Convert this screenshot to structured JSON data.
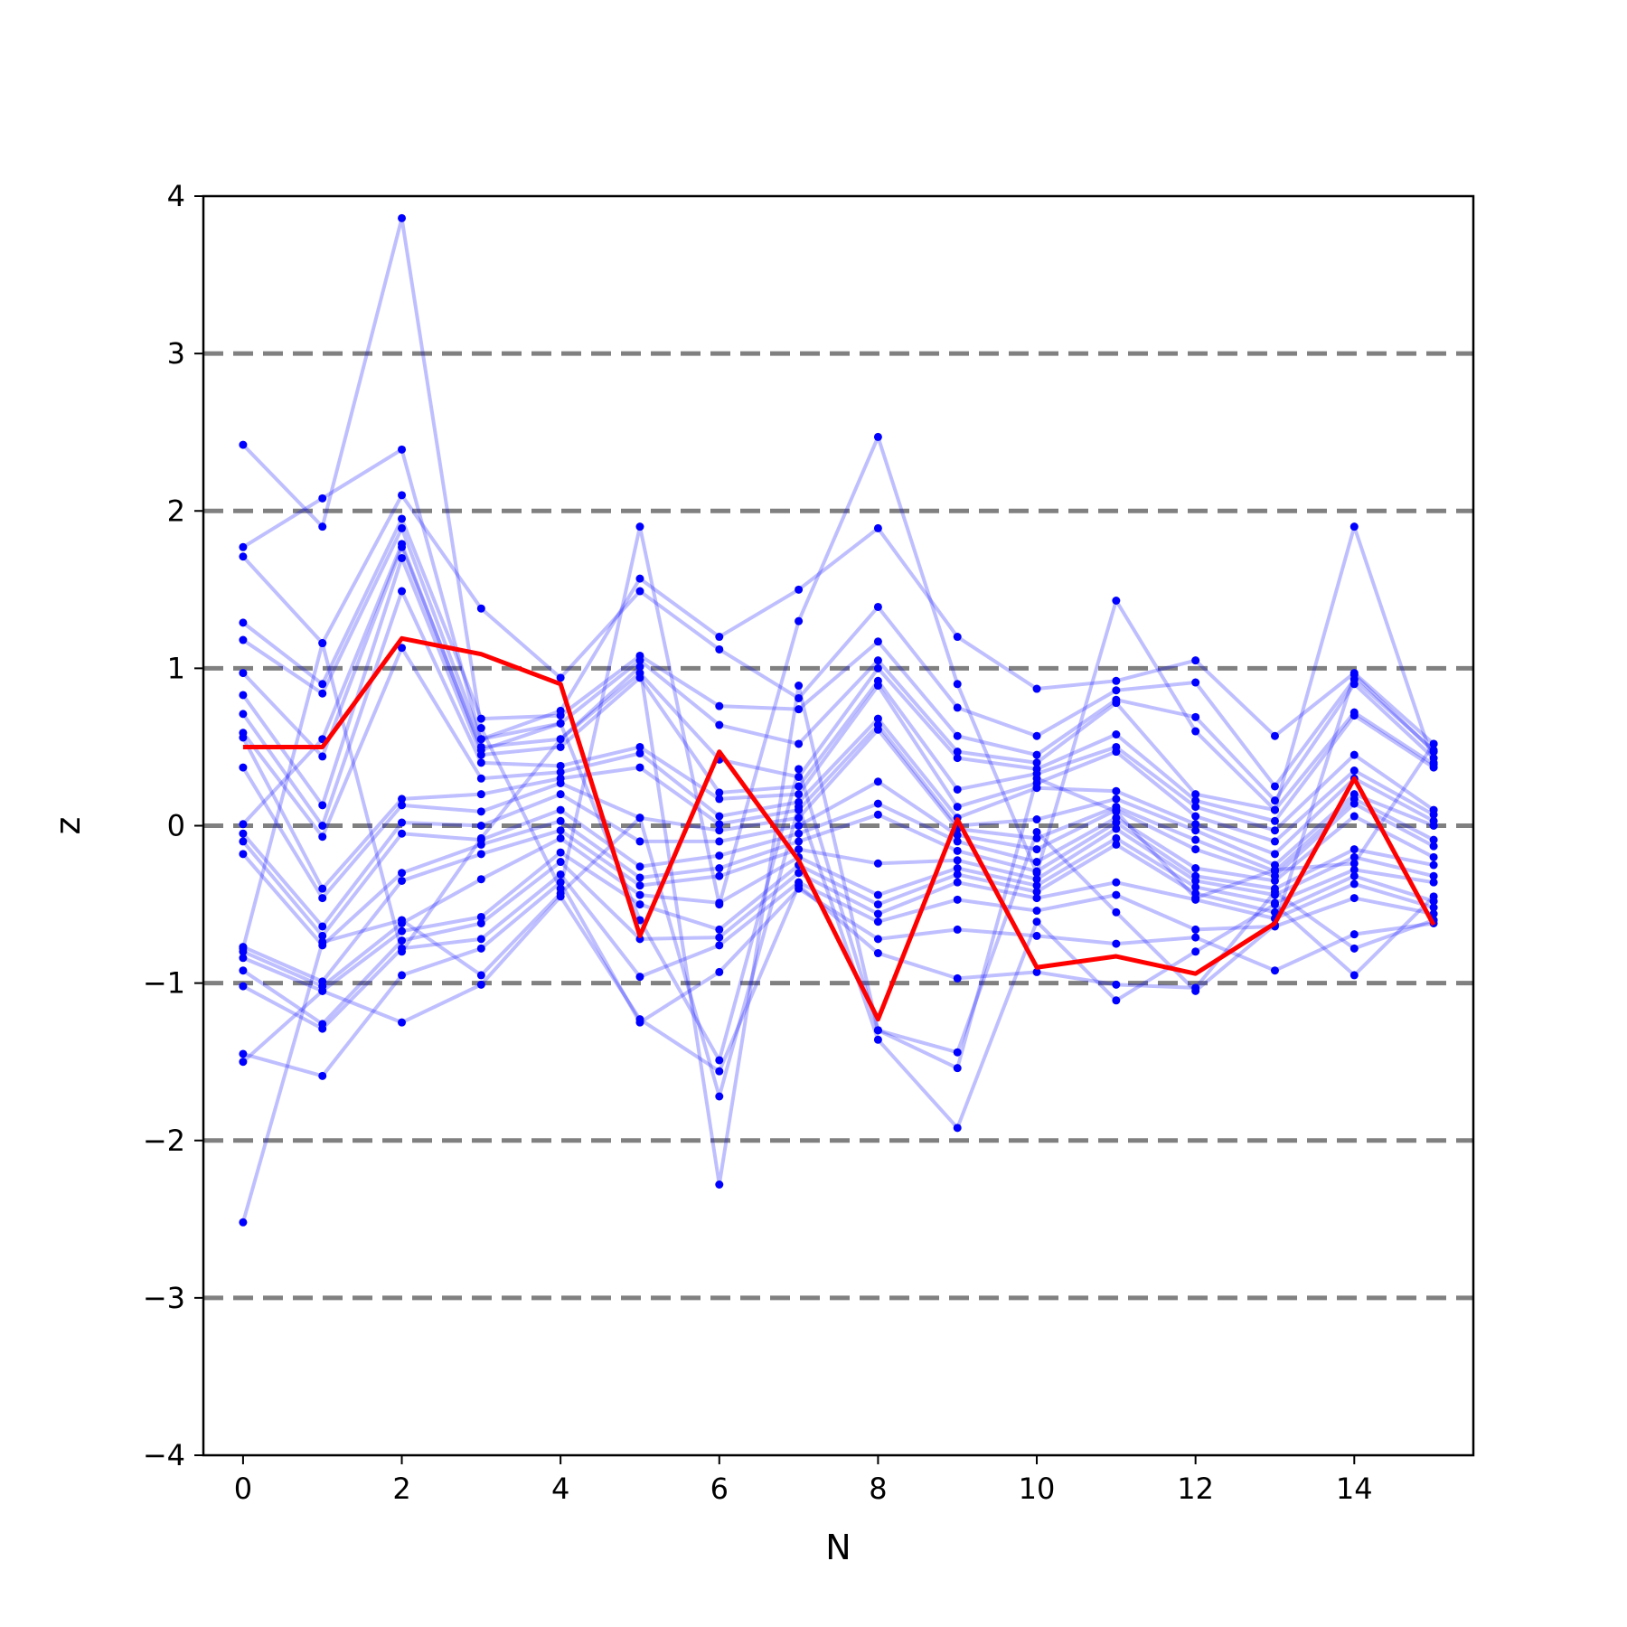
{
  "chart_data": {
    "type": "line",
    "xlabel": "N",
    "ylabel": "z",
    "xlim": [
      -0.5,
      15.5
    ],
    "ylim": [
      -4,
      4
    ],
    "x_ticks": [
      0,
      2,
      4,
      6,
      8,
      10,
      12,
      14
    ],
    "x_tick_labels": [
      "0",
      "2",
      "4",
      "6",
      "8",
      "10",
      "12",
      "14"
    ],
    "y_ticks": [
      -4,
      -3,
      -2,
      -1,
      0,
      1,
      2,
      3,
      4
    ],
    "y_tick_labels": [
      "−4",
      "−3",
      "−2",
      "−1",
      "0",
      "1",
      "2",
      "3",
      "4"
    ],
    "reference_lines": [
      -3,
      -2,
      -1,
      0,
      1,
      2,
      3
    ],
    "colors": {
      "highlight": "#ff0000",
      "samples": "#0000ff",
      "reference": "#808080"
    },
    "x": [
      0,
      1,
      2,
      3,
      4,
      5,
      6,
      7,
      8,
      9,
      10,
      11,
      12,
      13,
      14,
      15
    ],
    "highlight_series": {
      "values": [
        0.5,
        0.5,
        1.19,
        1.09,
        0.9,
        -0.7,
        0.47,
        -0.22,
        -1.23,
        0.04,
        -0.9,
        -0.83,
        -0.94,
        -0.62,
        0.3,
        -0.63
      ]
    },
    "sample_series": [
      {
        "values": [
          2.42,
          1.9,
          3.86,
          0.62,
          -0.4,
          1.9,
          -0.5,
          1.3,
          2.47,
          0.9,
          -0.3,
          1.43,
          0.6,
          0.1,
          1.9,
          0.4
        ]
      },
      {
        "values": [
          1.77,
          2.08,
          2.39,
          0.55,
          0.73,
          1.57,
          1.2,
          1.5,
          1.89,
          1.2,
          0.87,
          0.92,
          1.05,
          0.57,
          0.97,
          0.52
        ]
      },
      {
        "values": [
          1.71,
          1.16,
          2.1,
          1.38,
          0.94,
          1.49,
          1.12,
          0.81,
          1.39,
          0.75,
          0.57,
          0.86,
          0.91,
          0.25,
          0.93,
          0.48
        ]
      },
      {
        "values": [
          1.29,
          0.9,
          1.95,
          0.68,
          0.7,
          1.08,
          0.76,
          0.74,
          1.17,
          0.57,
          0.45,
          0.8,
          0.69,
          0.16,
          0.9,
          0.43
        ]
      },
      {
        "values": [
          1.18,
          0.84,
          1.89,
          0.55,
          0.65,
          1.05,
          0.64,
          0.52,
          1.05,
          0.47,
          0.4,
          0.78,
          0.2,
          0.1,
          0.72,
          0.39
        ]
      },
      {
        "values": [
          0.97,
          0.44,
          1.77,
          0.5,
          0.55,
          0.97,
          0.42,
          0.31,
          1.0,
          0.43,
          0.36,
          0.58,
          0.16,
          0.03,
          0.7,
          0.37
        ]
      },
      {
        "values": [
          0.83,
          0.13,
          1.7,
          0.45,
          0.5,
          0.94,
          0.21,
          0.25,
          0.92,
          0.23,
          0.33,
          0.5,
          0.12,
          -0.03,
          0.45,
          0.1
        ]
      },
      {
        "values": [
          0.71,
          0.0,
          1.49,
          0.4,
          0.38,
          0.5,
          0.17,
          0.2,
          0.89,
          0.12,
          0.27,
          0.47,
          0.06,
          -0.1,
          0.35,
          0.07
        ]
      },
      {
        "values": [
          0.59,
          -0.07,
          1.13,
          0.3,
          0.34,
          0.46,
          0.06,
          0.15,
          0.68,
          0.05,
          0.24,
          0.22,
          0.01,
          -0.18,
          0.3,
          0.03
        ]
      },
      {
        "values": [
          0.56,
          -0.4,
          0.17,
          0.2,
          0.3,
          0.37,
          0.01,
          0.1,
          0.64,
          0.0,
          0.04,
          0.17,
          -0.03,
          -0.25,
          0.2,
          0.0
        ]
      },
      {
        "values": [
          0.37,
          -0.46,
          0.13,
          0.09,
          0.27,
          0.05,
          -0.03,
          0.05,
          0.61,
          -0.02,
          -0.08,
          0.12,
          -0.09,
          -0.29,
          0.17,
          -0.09
        ]
      },
      {
        "values": [
          -0.05,
          -0.64,
          0.02,
          0.0,
          0.2,
          -0.1,
          -0.1,
          0.0,
          0.28,
          -0.06,
          -0.15,
          0.1,
          -0.15,
          -0.32,
          0.14,
          -0.13
        ]
      },
      {
        "values": [
          -0.1,
          -0.7,
          -0.05,
          -0.09,
          0.1,
          -0.26,
          -0.19,
          -0.05,
          0.14,
          -0.1,
          -0.23,
          0.05,
          -0.27,
          -0.35,
          0.06,
          -0.2
        ]
      },
      {
        "values": [
          -0.18,
          -0.76,
          -0.3,
          -0.12,
          0.03,
          -0.33,
          -0.27,
          -0.1,
          0.07,
          -0.16,
          -0.29,
          0.02,
          -0.32,
          -0.4,
          -0.15,
          -0.25
        ]
      },
      {
        "values": [
          -0.77,
          -0.99,
          -0.35,
          -0.18,
          -0.03,
          -0.38,
          -0.32,
          -0.15,
          -0.24,
          -0.22,
          -0.34,
          -0.02,
          -0.35,
          -0.44,
          -0.2,
          -0.32
        ]
      },
      {
        "values": [
          -0.8,
          -1.02,
          -0.62,
          -0.34,
          -0.08,
          -0.44,
          -0.49,
          -0.2,
          -0.44,
          -0.27,
          -0.38,
          -0.08,
          -0.39,
          -0.49,
          -0.28,
          -0.36
        ]
      },
      {
        "values": [
          -0.84,
          -1.05,
          -0.67,
          -0.58,
          -0.17,
          -0.5,
          -0.66,
          -0.25,
          -0.5,
          -0.31,
          -0.42,
          -0.12,
          -0.43,
          -0.55,
          -0.32,
          -0.48
        ]
      },
      {
        "values": [
          -0.92,
          -1.26,
          -0.73,
          -0.62,
          -0.23,
          -0.72,
          -0.71,
          -0.3,
          -0.56,
          -0.36,
          -0.46,
          -0.36,
          -0.47,
          -0.59,
          -0.37,
          -0.52
        ]
      },
      {
        "values": [
          -1.02,
          -1.29,
          -0.78,
          -0.72,
          -0.31,
          -0.96,
          -0.76,
          -0.36,
          -0.61,
          -0.47,
          -0.54,
          -0.44,
          -0.66,
          -0.64,
          -0.46,
          -0.56
        ]
      },
      {
        "values": [
          -1.45,
          -1.59,
          -0.95,
          -0.78,
          -0.36,
          -1.25,
          -0.93,
          -0.4,
          -0.72,
          -0.66,
          -0.7,
          -0.75,
          -0.71,
          -0.92,
          -0.69,
          -0.62
        ]
      },
      {
        "values": [
          -1.5,
          -1.05,
          -1.25,
          -1.01,
          -0.45,
          -1.23,
          -1.56,
          -0.38,
          -0.81,
          -0.97,
          -0.93,
          -1.01,
          -1.03,
          -0.42,
          -0.78,
          -0.6
        ]
      },
      {
        "values": [
          -2.52,
          -0.74,
          -0.6,
          -0.95,
          -0.43,
          0.05,
          -1.72,
          0.12,
          -1.36,
          -1.92,
          -0.61,
          -1.11,
          -0.8,
          -0.5,
          -0.95,
          -0.45
        ]
      },
      {
        "values": [
          0.01,
          0.55,
          1.79,
          0.48,
          0.65,
          -0.6,
          -1.49,
          0.36,
          -1.3,
          -1.54,
          0.3,
          0.09,
          -0.46,
          -0.28,
          -0.24,
          0.52
        ]
      },
      {
        "values": [
          -0.78,
          1.16,
          -0.8,
          -0.08,
          0.55,
          1.01,
          -2.28,
          0.89,
          -1.3,
          -1.44,
          -0.04,
          -0.55,
          -1.05,
          -0.63,
          0.96,
          0.47
        ]
      }
    ]
  }
}
